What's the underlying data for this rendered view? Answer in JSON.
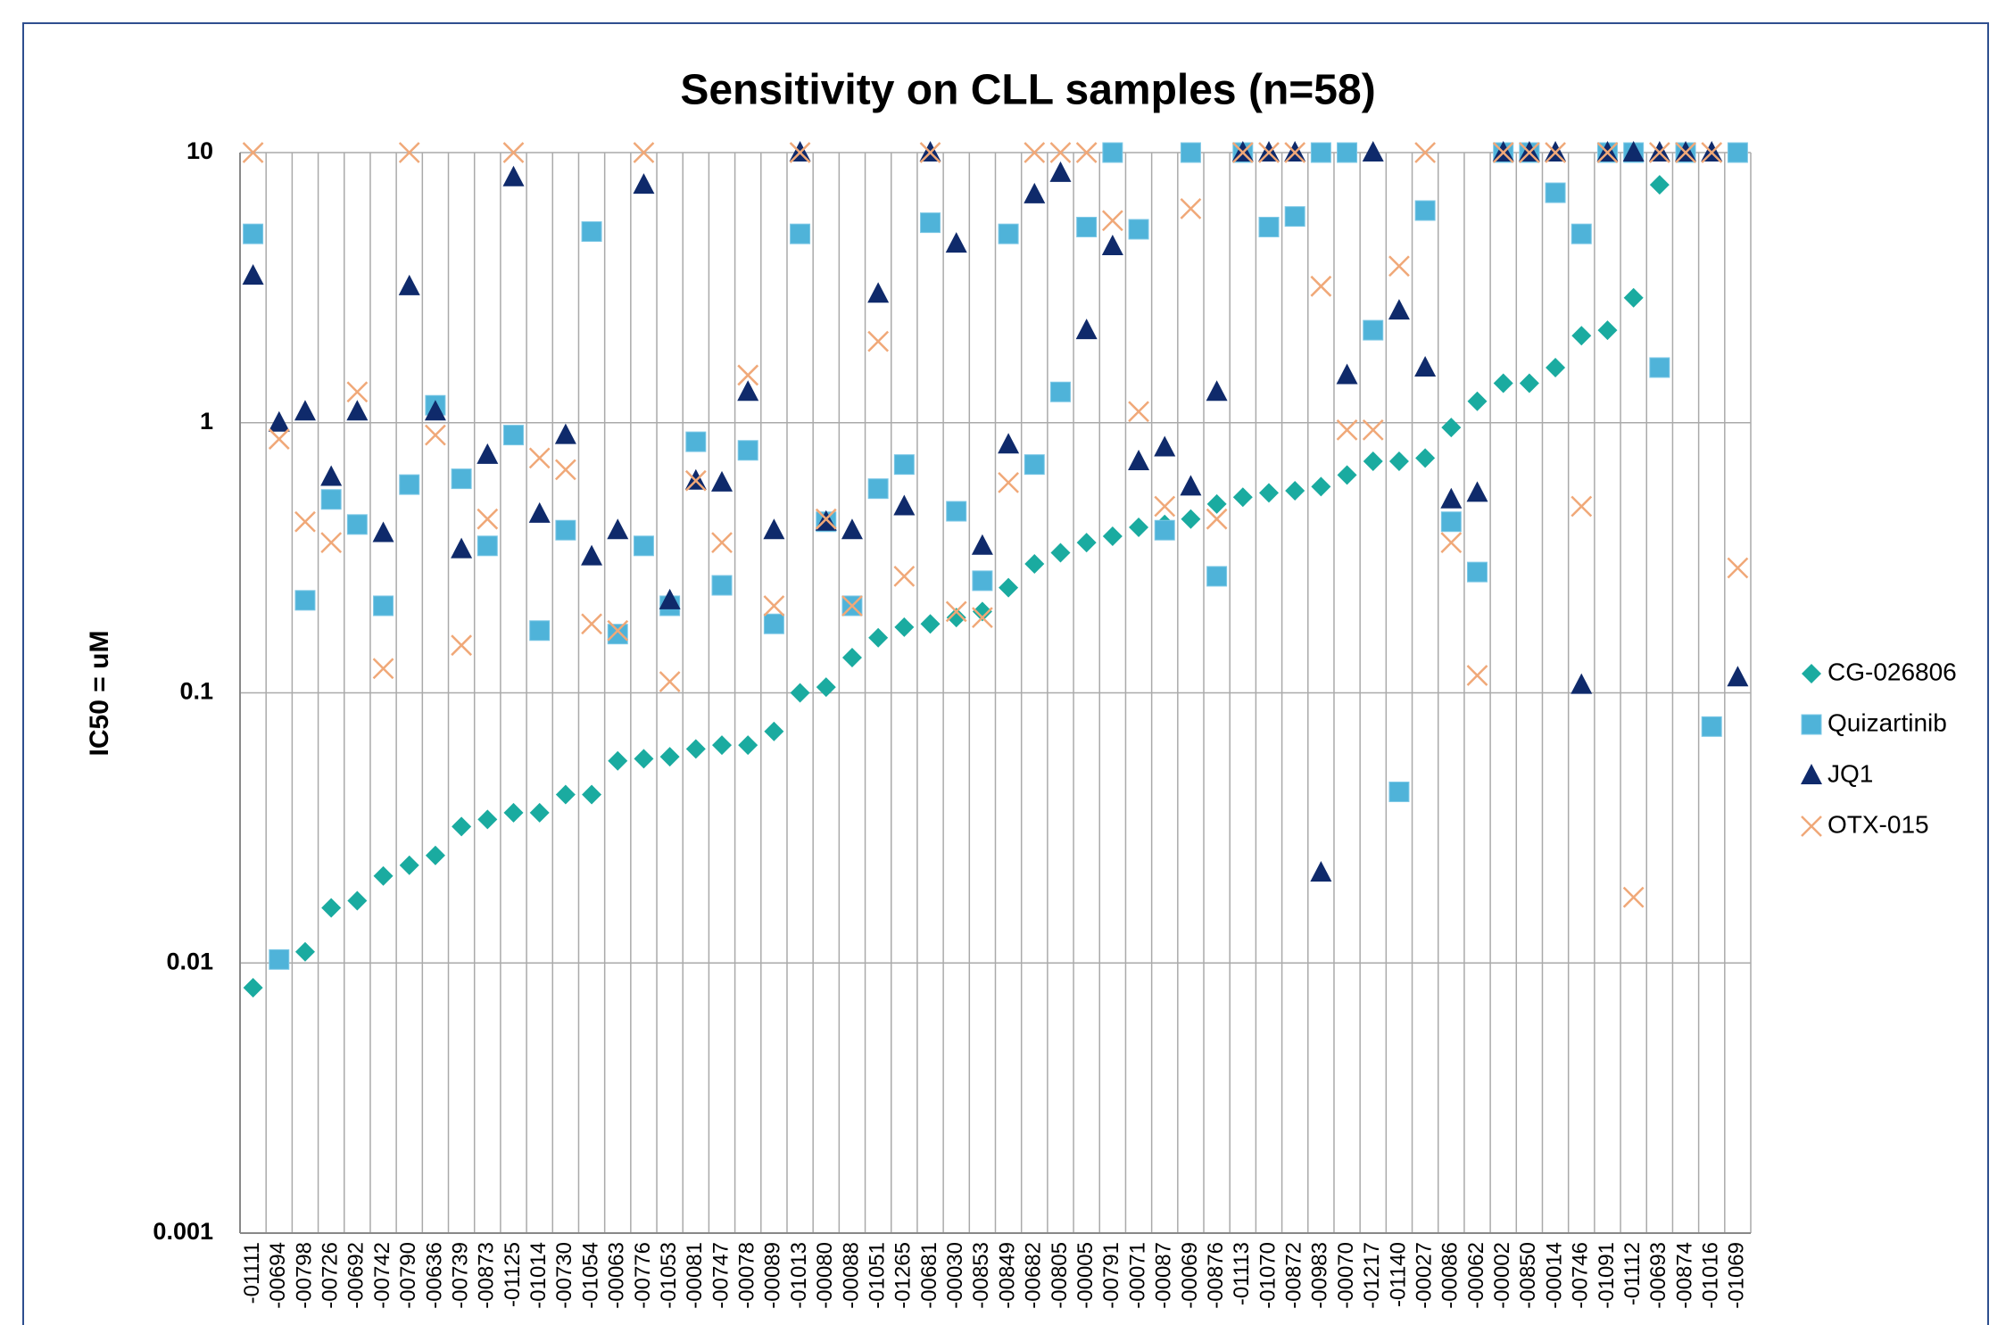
{
  "chart_data": {
    "type": "scatter",
    "title": "Sensitivity on CLL samples (n=58)",
    "y_label": "IC50 = uM",
    "log_y": true,
    "grid": true,
    "legend": "right",
    "ylim": [
      0.001,
      10
    ],
    "yticks": [
      0.001,
      0.01,
      0.1,
      1,
      10
    ],
    "categories": [
      "-01111",
      "-00694",
      "-00798",
      "-00726",
      "-00692",
      "-00742",
      "-00790",
      "-00636",
      "-00739",
      "-00873",
      "-01125",
      "-01014",
      "-00730",
      "-01054",
      "-00063",
      "-00776",
      "-01053",
      "-00081",
      "-00747",
      "-00078",
      "-00089",
      "-01013",
      "-00080",
      "-00088",
      "-01051",
      "-01265",
      "-00681",
      "-00030",
      "-00853",
      "-00849",
      "-00682",
      "-00805",
      "-00005",
      "-00791",
      "-00071",
      "-00087",
      "-00069",
      "-00876",
      "-01113",
      "-01070",
      "-00872",
      "-00983",
      "-00070",
      "-01217",
      "-01140",
      "-00027",
      "-00086",
      "-00062",
      "-00002",
      "-00850",
      "-00014",
      "-00746",
      "-01091",
      "-01112",
      "-00693",
      "-00874",
      "-01016",
      "-01069"
    ],
    "series": [
      {
        "name": "CG-026806",
        "color": "#1aaba0",
        "marker": "diamond",
        "values": [
          0.0081,
          0.0103,
          0.011,
          0.016,
          0.017,
          0.021,
          0.023,
          0.025,
          0.032,
          0.034,
          0.036,
          0.036,
          0.042,
          0.042,
          0.056,
          0.057,
          0.058,
          0.062,
          0.064,
          0.064,
          0.072,
          0.1,
          0.105,
          0.135,
          0.16,
          0.175,
          0.18,
          0.19,
          0.2,
          0.245,
          0.3,
          0.33,
          0.36,
          0.38,
          0.41,
          0.42,
          0.44,
          0.5,
          0.53,
          0.55,
          0.56,
          0.58,
          0.64,
          0.72,
          0.72,
          0.74,
          0.96,
          1.2,
          1.4,
          1.4,
          1.6,
          2.1,
          2.2,
          2.9,
          7.6,
          null,
          null,
          null
        ]
      },
      {
        "name": "Quizartinib",
        "color": "#4fb3d9",
        "marker": "square",
        "values": [
          5.0,
          0.0103,
          0.22,
          0.52,
          0.42,
          0.21,
          0.59,
          1.16,
          0.62,
          0.35,
          0.9,
          0.17,
          0.4,
          5.1,
          0.165,
          0.35,
          0.21,
          0.85,
          0.25,
          0.79,
          0.18,
          5.0,
          0.43,
          0.21,
          0.57,
          0.7,
          5.5,
          0.47,
          0.26,
          5.0,
          0.7,
          1.3,
          5.3,
          10,
          5.2,
          0.4,
          10,
          0.27,
          10,
          5.3,
          5.8,
          10,
          10,
          2.2,
          0.043,
          6.1,
          0.43,
          0.28,
          10,
          10,
          7.1,
          5.0,
          10,
          10,
          1.6,
          10,
          0.075,
          10
        ]
      },
      {
        "name": "JQ1",
        "color": "#0f2a6b",
        "marker": "triangle",
        "values": [
          3.5,
          1.0,
          1.1,
          0.63,
          1.1,
          0.39,
          3.2,
          1.1,
          0.34,
          0.76,
          8.1,
          0.46,
          0.9,
          0.32,
          0.4,
          7.6,
          0.22,
          0.61,
          0.6,
          1.3,
          0.4,
          10,
          0.43,
          0.4,
          3.0,
          0.49,
          10,
          4.6,
          0.35,
          0.83,
          7.0,
          8.4,
          2.2,
          4.5,
          0.72,
          0.81,
          0.58,
          1.3,
          10,
          10,
          10,
          0.0216,
          1.5,
          10,
          2.6,
          1.6,
          0.52,
          0.55,
          10,
          10,
          10,
          0.107,
          10,
          10,
          10,
          10,
          10,
          0.114
        ]
      },
      {
        "name": "OTX-015",
        "color": "#f0a878",
        "marker": "x",
        "values": [
          10,
          0.87,
          0.43,
          0.36,
          1.3,
          0.123,
          10,
          0.9,
          0.15,
          0.44,
          10,
          0.74,
          0.67,
          0.18,
          0.17,
          10,
          0.11,
          0.61,
          0.36,
          1.5,
          0.21,
          10,
          0.44,
          0.21,
          2.0,
          0.27,
          10,
          0.2,
          0.19,
          0.6,
          10,
          10,
          10,
          5.6,
          1.1,
          0.49,
          6.2,
          0.44,
          10,
          10,
          10,
          3.2,
          0.94,
          0.94,
          3.8,
          10,
          0.36,
          0.116,
          10,
          10,
          10,
          0.49,
          10,
          0.0175,
          10,
          10,
          10,
          0.29
        ]
      }
    ]
  }
}
